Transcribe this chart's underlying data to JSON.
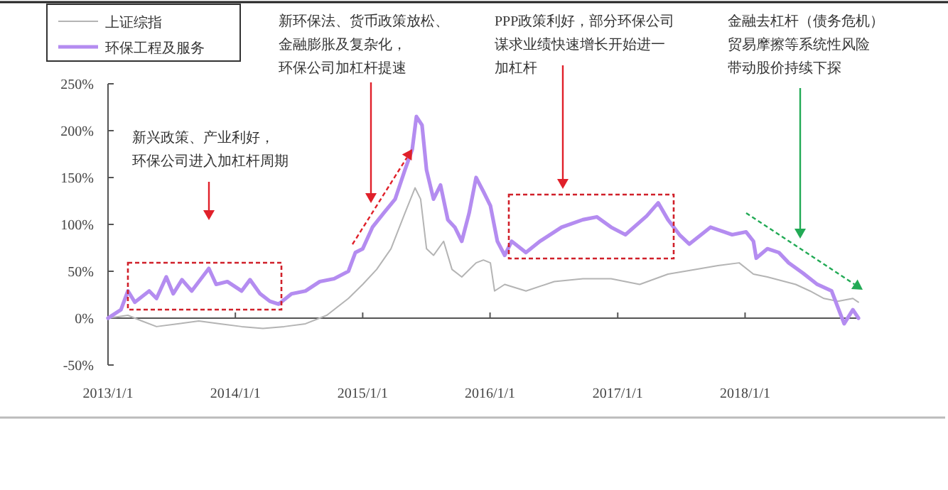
{
  "chart_data": {
    "type": "line",
    "legend": "top left",
    "marker": "none",
    "line_style": "solid",
    "annotations": [
      "新兴政策、产业利好，",
      "环保公司进入加杠杆周期",
      "新环保法、货币政策放松、",
      "金融膨胀及复杂化，",
      "环保公司加杠杆提速",
      "PPP政策利好，部分环保公司",
      "谋求业绩快速增长开始进一",
      "加杠杆",
      "金融去杠杆（债务危机）",
      "贸易摩擦等系统性风险",
      "带动股价持续下探"
    ],
    "xlim": [
      "2013-01-01",
      "2018-11-22"
    ],
    "xticks": [
      {
        "value": "2013-01-01",
        "label": "2013/1/1"
      },
      {
        "value": "2014-01-01",
        "label": "2014/1/1"
      },
      {
        "value": "2015-01-01",
        "label": "2015/1/1"
      },
      {
        "value": "2016-01-01",
        "label": "2016/1/1"
      },
      {
        "value": "2017-01-01",
        "label": "2017/1/1"
      },
      {
        "value": "2018-01-01",
        "label": "2018/1/1"
      }
    ],
    "ylim": [
      -50,
      250
    ],
    "yticks": [
      {
        "value": -50,
        "label": "-50%"
      },
      {
        "value": 0,
        "label": "0%"
      },
      {
        "value": 50,
        "label": "50%"
      },
      {
        "value": 100,
        "label": "100%"
      },
      {
        "value": 150,
        "label": "150%"
      },
      {
        "value": 200,
        "label": "200%"
      },
      {
        "value": 250,
        "label": "250%"
      }
    ],
    "series": [
      {
        "name": "上证综指",
        "color": "#b4b4b4",
        "x": [
          "2013-01-01",
          "2013-02-27",
          "2013-04-08",
          "2013-05-20",
          "2013-07-20",
          "2013-09-18",
          "2013-11-18",
          "2014-01-19",
          "2014-03-21",
          "2014-05-21",
          "2014-07-21",
          "2014-09-20",
          "2014-11-21",
          "2015-01-01",
          "2015-02-10",
          "2015-03-23",
          "2015-05-02",
          "2015-05-31",
          "2015-06-16",
          "2015-07-03",
          "2015-07-23",
          "2015-08-21",
          "2015-09-14",
          "2015-10-12",
          "2015-11-22",
          "2015-12-13",
          "2016-01-02",
          "2016-01-14",
          "2016-02-12",
          "2016-04-13",
          "2016-07-03",
          "2016-09-23",
          "2016-12-13",
          "2017-03-05",
          "2017-05-25",
          "2017-08-14",
          "2017-10-15",
          "2017-12-15",
          "2018-01-25",
          "2018-03-06",
          "2018-05-26",
          "2018-07-06",
          "2018-08-15",
          "2018-09-24",
          "2018-11-06",
          "2018-11-22"
        ],
        "values": [
          0,
          3,
          -3,
          -9,
          -6,
          -3,
          -6,
          -9,
          -11,
          -9,
          -6,
          3,
          21,
          36,
          52,
          74,
          112,
          139,
          127,
          74,
          67,
          82,
          52,
          44,
          59,
          62,
          59,
          29,
          36,
          29,
          39,
          42,
          42,
          36,
          47,
          52,
          56,
          59,
          47,
          44,
          36,
          29,
          21,
          18,
          21,
          17
        ]
      },
      {
        "name": "环保工程及服务",
        "color": "#b48cf0",
        "x": [
          "2013-01-01",
          "2013-02-07",
          "2013-02-27",
          "2013-03-19",
          "2013-04-29",
          "2013-05-20",
          "2013-06-17",
          "2013-07-07",
          "2013-08-01",
          "2013-08-29",
          "2013-10-17",
          "2013-11-07",
          "2013-12-09",
          "2014-01-19",
          "2014-02-12",
          "2014-03-13",
          "2014-04-10",
          "2014-05-05",
          "2014-06-11",
          "2014-07-21",
          "2014-08-31",
          "2014-10-11",
          "2014-11-21",
          "2014-12-11",
          "2015-01-01",
          "2015-01-29",
          "2015-03-02",
          "2015-04-04",
          "2015-05-02",
          "2015-05-23",
          "2015-06-04",
          "2015-06-20",
          "2015-07-03",
          "2015-07-23",
          "2015-08-12",
          "2015-09-02",
          "2015-09-22",
          "2015-10-12",
          "2015-11-02",
          "2015-11-22",
          "2015-12-13",
          "2016-01-02",
          "2016-01-22",
          "2016-02-12",
          "2016-03-03",
          "2016-04-13",
          "2016-05-23",
          "2016-07-24",
          "2016-09-23",
          "2016-11-02",
          "2016-12-13",
          "2017-01-23",
          "2017-03-25",
          "2017-04-27",
          "2017-05-25",
          "2017-06-27",
          "2017-07-25",
          "2017-09-24",
          "2017-11-25",
          "2018-01-04",
          "2018-01-25",
          "2018-02-02",
          "2018-03-06",
          "2018-04-08",
          "2018-05-06",
          "2018-06-16",
          "2018-07-27",
          "2018-09-06",
          "2018-10-12",
          "2018-11-06",
          "2018-11-22"
        ],
        "values": [
          0,
          9,
          29,
          17,
          29,
          21,
          44,
          26,
          41,
          29,
          53,
          36,
          39,
          29,
          41,
          26,
          18,
          15,
          26,
          29,
          39,
          42,
          50,
          70,
          74,
          97,
          112,
          127,
          158,
          180,
          215,
          206,
          158,
          127,
          142,
          105,
          97,
          82,
          112,
          150,
          135,
          120,
          82,
          67,
          82,
          70,
          82,
          97,
          105,
          108,
          97,
          89,
          109,
          123,
          105,
          89,
          79,
          97,
          89,
          92,
          82,
          64,
          74,
          70,
          59,
          48,
          36,
          29,
          -6,
          9,
          0
        ]
      }
    ]
  }
}
